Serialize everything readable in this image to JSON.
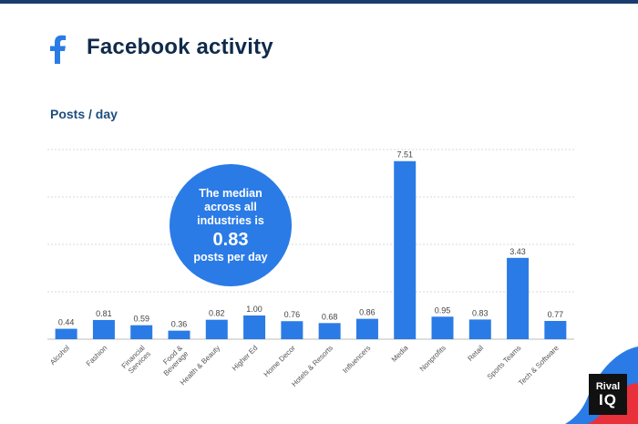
{
  "header": {
    "title": "Facebook activity",
    "subtitle": "Posts / day",
    "logo_icon": "facebook-f-icon"
  },
  "median": {
    "line1": "The median",
    "line2": "across all",
    "line3": "industries is",
    "value": "0.83",
    "unit": "posts per day"
  },
  "brand": {
    "line1": "Rival",
    "line2": "IQ"
  },
  "colors": {
    "bar": "#2a7be6",
    "title": "#0f2a4a",
    "subtitle": "#1d4e7e",
    "grid": "#d9d9d9",
    "topbar": "#1a3b6e"
  },
  "chart_data": {
    "type": "bar",
    "title": "Facebook activity",
    "subtitle": "Posts / day",
    "categories": [
      "Alcohol",
      "Fashion",
      "Financial Services",
      "Food & Beverage",
      "Health & Beauty",
      "Higher Ed",
      "Home Decor",
      "Hotels & Resorts",
      "Influencers",
      "Media",
      "Nonprofits",
      "Retail",
      "Sports Teams",
      "Tech & Software"
    ],
    "values": [
      0.44,
      0.81,
      0.59,
      0.36,
      0.82,
      1.0,
      0.76,
      0.68,
      0.86,
      7.51,
      0.95,
      0.83,
      3.43,
      0.77
    ],
    "value_labels": [
      "0.44",
      "0.81",
      "0.59",
      "0.36",
      "0.82",
      "1.00",
      "0.76",
      "0.68",
      "0.86",
      "7.51",
      "0.95",
      "0.83",
      "3.43",
      "0.77"
    ],
    "ylim": [
      0,
      8
    ],
    "grid": true,
    "annotation": "The median across all industries is 0.83 posts per day"
  }
}
